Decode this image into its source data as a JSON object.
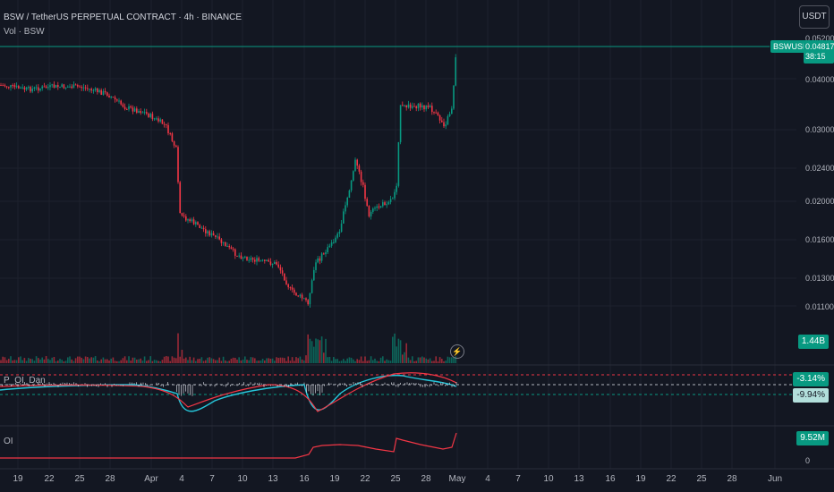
{
  "header": {
    "title": "BSW / TetherUS PERPETUAL CONTRACT · 4h · BINANCE",
    "vol_label": "Vol · BSW",
    "po_label": "P_OI_Dan",
    "oi_label": "OI"
  },
  "currency_button": "USDT",
  "last_price": {
    "symbol": "BSWUSDT.P",
    "price": "0.04817",
    "countdown": "38:15"
  },
  "price_scale": {
    "labels": [
      "0.05200",
      "0.04000",
      "0.03000",
      "0.02400",
      "0.02000",
      "0.01600",
      "0.01300",
      "0.01100"
    ]
  },
  "volume_tag": "1.44B",
  "po_tags": {
    "upper": "-3.14%",
    "lower": "-9.94%"
  },
  "oi_tag": "9.52M",
  "oi_scale_zero": "0",
  "x_axis": {
    "labels": [
      "19",
      "22",
      "25",
      "28",
      "Apr",
      "4",
      "7",
      "10",
      "13",
      "16",
      "19",
      "22",
      "25",
      "28",
      "May",
      "4",
      "7",
      "10",
      "13",
      "16",
      "19",
      "22",
      "25",
      "28",
      "Jun"
    ]
  },
  "colors": {
    "up": "#089981",
    "down": "#f23645",
    "po_line": "#26c6da",
    "po_signal": "#f23645"
  }
}
